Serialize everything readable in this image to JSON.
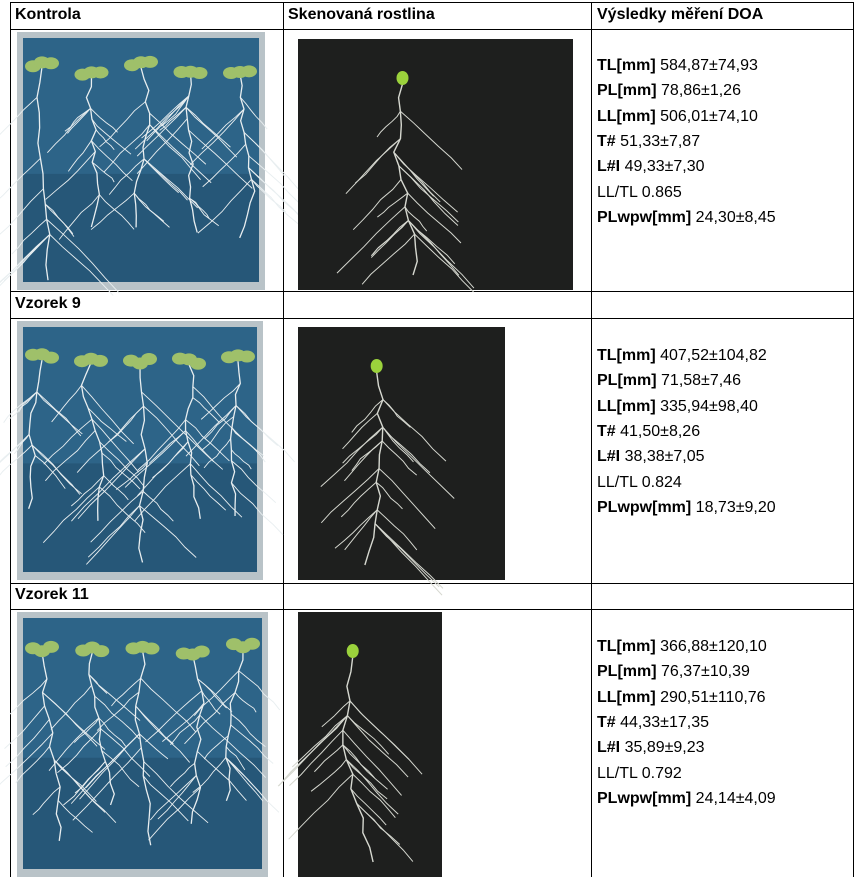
{
  "header": {
    "columns": [
      "Kontrola",
      "Skenovaná rostlina",
      "Výsledky měření DOA"
    ]
  },
  "samples": [
    {
      "measurements": [
        {
          "name": "TL[mm]",
          "value": "584,87±74,93",
          "bold": true
        },
        {
          "name": "PL[mm]",
          "value": "78,86±1,26",
          "bold": true
        },
        {
          "name": "LL[mm]",
          "value": "506,01±74,10",
          "bold": true
        },
        {
          "name": "T#",
          "value": "51,33±7,87",
          "bold": true
        },
        {
          "name": "L#I",
          "value": "49,33±7,30",
          "bold": true
        },
        {
          "name": "LL/TL",
          "value": "0.865",
          "bold": false
        },
        {
          "name": "PLwpw[mm]",
          "value": "24,30±8,45",
          "bold": true
        }
      ]
    },
    {
      "label": "Vzorek 9",
      "measurements": [
        {
          "name": "TL[mm]",
          "value": "407,52±104,82",
          "bold": true
        },
        {
          "name": "PL[mm]",
          "value": "71,58±7,46",
          "bold": true
        },
        {
          "name": "LL[mm]",
          "value": "335,94±98,40",
          "bold": true
        },
        {
          "name": "T#",
          "value": "41,50±8,26",
          "bold": true
        },
        {
          "name": "L#I",
          "value": "38,38±7,05",
          "bold": true
        },
        {
          "name": "LL/TL",
          "value": "0.824",
          "bold": false
        },
        {
          "name": "PLwpw[mm]",
          "value": "18,73±9,20",
          "bold": true
        }
      ]
    },
    {
      "label": "Vzorek 11",
      "measurements": [
        {
          "name": "TL[mm]",
          "value": "366,88±120,10",
          "bold": true
        },
        {
          "name": "PL[mm]",
          "value": "76,37±10,39",
          "bold": true
        },
        {
          "name": "LL[mm]",
          "value": "290,51±110,76",
          "bold": true
        },
        {
          "name": "T#",
          "value": "44,33±17,35",
          "bold": true
        },
        {
          "name": "L#I",
          "value": "35,89±9,23",
          "bold": true
        },
        {
          "name": "LL/TL",
          "value": "0.792",
          "bold": false
        },
        {
          "name": "PLwpw[mm]",
          "value": "24,14±4,09",
          "bold": true
        }
      ]
    }
  ]
}
